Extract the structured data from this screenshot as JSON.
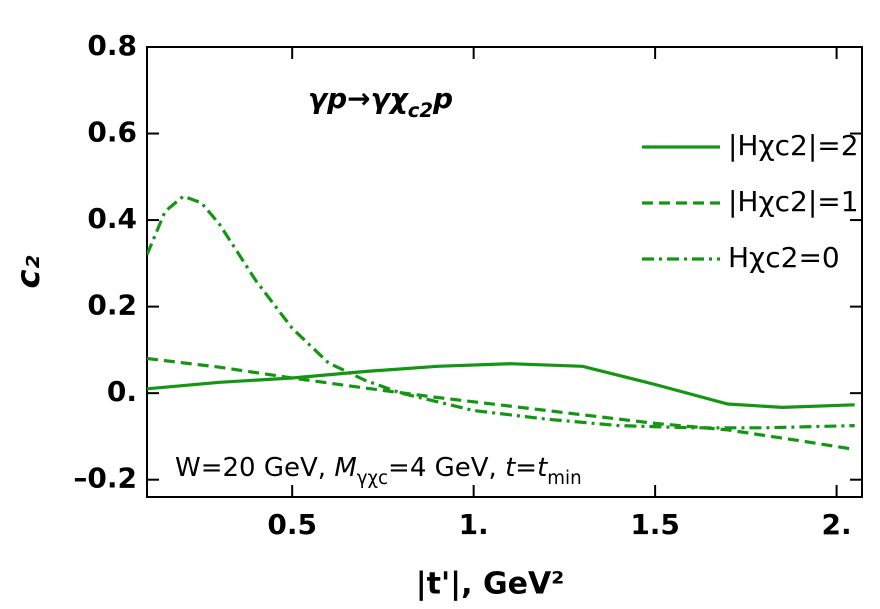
{
  "chart_data": {
    "type": "line",
    "title": [
      {
        "text": "γp→γχ"
      },
      {
        "text": "c2",
        "style": "sub"
      },
      {
        "text": "p"
      }
    ],
    "note": [
      {
        "text": "W=20 GeV, "
      },
      {
        "text": "M",
        "style": "italic"
      },
      {
        "text": "γχc",
        "style": "sub"
      },
      {
        "text": "=4 GeV, "
      },
      {
        "text": "t",
        "style": "italic"
      },
      {
        "text": "="
      },
      {
        "text": "t",
        "style": "italic"
      },
      {
        "text": "min",
        "style": "sub"
      }
    ],
    "x_label": "|t'|, GeV²",
    "y_label": "c₂",
    "xlim": [
      0.1,
      2.07
    ],
    "ylim": [
      -0.24,
      0.8
    ],
    "xticks": [
      0.5,
      {
        "value": 1,
        "label": "1."
      },
      1.5,
      {
        "value": 2,
        "label": "2."
      }
    ],
    "yticks": [
      {
        "value": -0.2,
        "label": "–0.2"
      },
      {
        "value": 0,
        "label": "0."
      },
      0.2,
      0.4,
      0.6,
      0.8
    ],
    "legend": "upper right",
    "series": [
      {
        "name": "|Hχc2|=2",
        "color": "#149614",
        "dash": "solid",
        "x": [
          0.1,
          0.3,
          0.5,
          0.7,
          0.9,
          1.1,
          1.3,
          1.5,
          1.7,
          1.85,
          2.05
        ],
        "values": [
          0.01,
          0.025,
          0.035,
          0.05,
          0.062,
          0.068,
          0.062,
          0.02,
          -0.025,
          -0.033,
          -0.027
        ]
      },
      {
        "name": "|Hχc2|=1",
        "color": "#149614",
        "dash": "dashed",
        "x": [
          0.1,
          0.3,
          0.5,
          0.7,
          0.9,
          1.1,
          1.3,
          1.5,
          1.7,
          1.9,
          2.05
        ],
        "values": [
          0.08,
          0.06,
          0.035,
          0.012,
          -0.01,
          -0.03,
          -0.05,
          -0.07,
          -0.085,
          -0.11,
          -0.13
        ]
      },
      {
        "name": "Hχc2=0",
        "color": "#149614",
        "dash": "dashdot",
        "x": [
          0.1,
          0.15,
          0.2,
          0.25,
          0.3,
          0.4,
          0.5,
          0.6,
          0.7,
          0.8,
          0.9,
          1.0,
          1.2,
          1.4,
          1.6,
          1.8,
          2.05
        ],
        "values": [
          0.32,
          0.42,
          0.455,
          0.44,
          0.39,
          0.26,
          0.15,
          0.07,
          0.03,
          0.0,
          -0.02,
          -0.04,
          -0.06,
          -0.075,
          -0.08,
          -0.08,
          -0.075
        ]
      }
    ]
  }
}
